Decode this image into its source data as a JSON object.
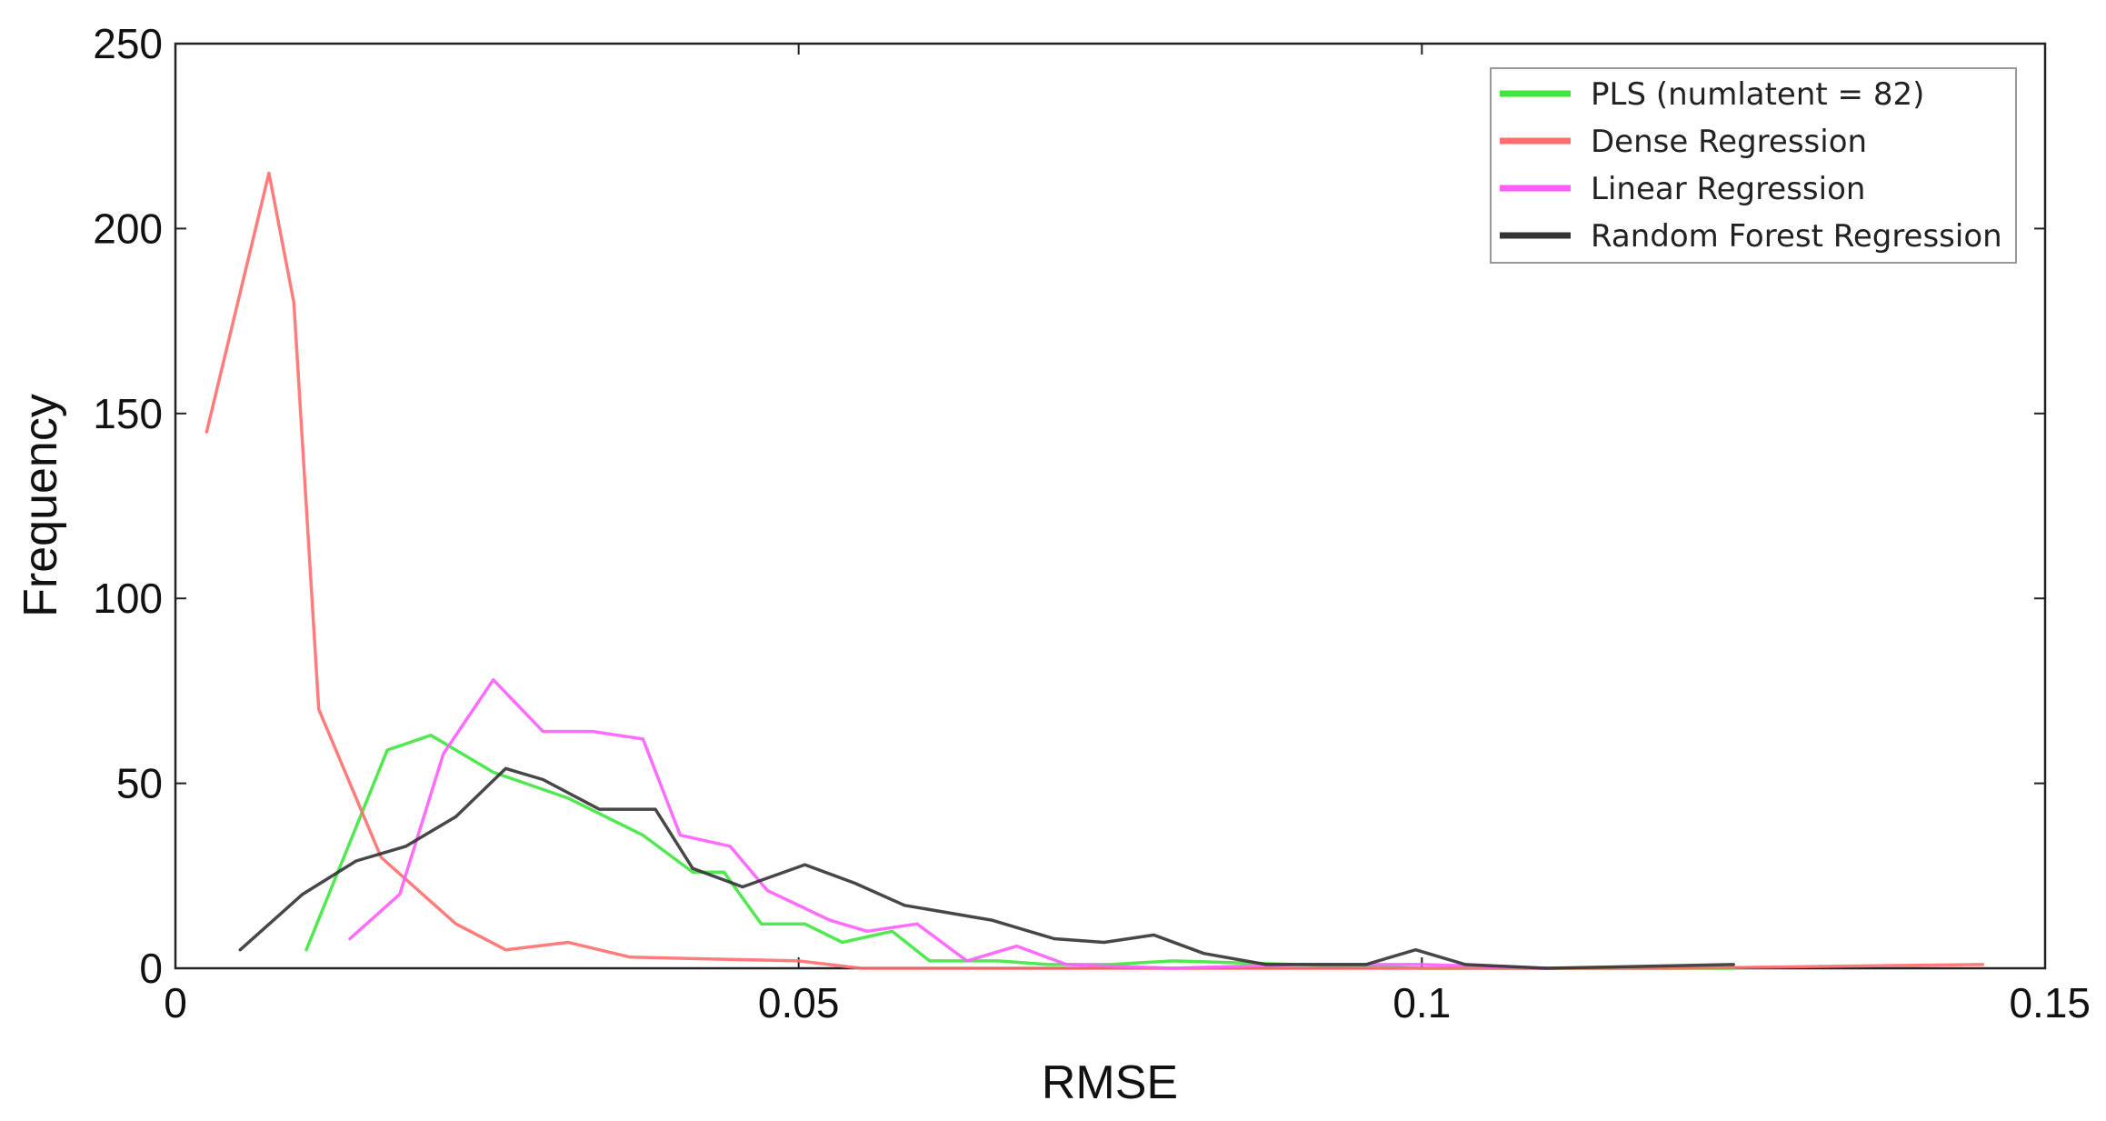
{
  "chart_data": {
    "type": "line",
    "title": "",
    "xlabel": "RMSE",
    "ylabel": "Frequency",
    "xlim": [
      0,
      0.15
    ],
    "ylim": [
      0,
      250
    ],
    "xticks": [
      {
        "value": 0,
        "label": "0"
      },
      {
        "value": 0.05,
        "label": "0.05"
      },
      {
        "value": 0.1,
        "label": "0.1"
      },
      {
        "value": 0.15,
        "label": "0.15"
      }
    ],
    "yticks": [
      {
        "value": 0,
        "label": "0"
      },
      {
        "value": 50,
        "label": "50"
      },
      {
        "value": 100,
        "label": "100"
      },
      {
        "value": 150,
        "label": "150"
      },
      {
        "value": 200,
        "label": "200"
      },
      {
        "value": 250,
        "label": "250"
      }
    ],
    "grid": false,
    "legend_position": "top-right",
    "series": [
      {
        "name": "PLS (numlatent = 82)",
        "color": "#3ee63e",
        "points": [
          [
            0.0105,
            5
          ],
          [
            0.017,
            59
          ],
          [
            0.0205,
            63
          ],
          [
            0.0255,
            53
          ],
          [
            0.0315,
            46
          ],
          [
            0.0375,
            36
          ],
          [
            0.0415,
            26
          ],
          [
            0.044,
            26
          ],
          [
            0.047,
            12
          ],
          [
            0.0505,
            12
          ],
          [
            0.0535,
            7
          ],
          [
            0.0575,
            10
          ],
          [
            0.0605,
            2
          ],
          [
            0.066,
            2
          ],
          [
            0.07,
            1
          ],
          [
            0.075,
            1
          ],
          [
            0.08,
            2
          ],
          [
            0.09,
            1
          ],
          [
            0.1,
            0
          ],
          [
            0.11,
            0
          ],
          [
            0.125,
            0
          ]
        ]
      },
      {
        "name": "Dense Regression",
        "color": "#ff6e6e",
        "points": [
          [
            0.0025,
            145
          ],
          [
            0.0075,
            215
          ],
          [
            0.0095,
            180
          ],
          [
            0.0115,
            70
          ],
          [
            0.0165,
            30
          ],
          [
            0.0225,
            12
          ],
          [
            0.0265,
            5
          ],
          [
            0.0315,
            7
          ],
          [
            0.0365,
            3
          ],
          [
            0.05,
            2
          ],
          [
            0.055,
            0
          ],
          [
            0.07,
            0
          ],
          [
            0.09,
            0
          ],
          [
            0.12,
            0
          ],
          [
            0.145,
            1
          ]
        ]
      },
      {
        "name": "Linear Regression",
        "color": "#ff5cff",
        "points": [
          [
            0.014,
            8
          ],
          [
            0.018,
            20
          ],
          [
            0.0215,
            58
          ],
          [
            0.0255,
            78
          ],
          [
            0.0295,
            64
          ],
          [
            0.0335,
            64
          ],
          [
            0.0375,
            62
          ],
          [
            0.0405,
            36
          ],
          [
            0.0445,
            33
          ],
          [
            0.0475,
            21
          ],
          [
            0.0525,
            13
          ],
          [
            0.0555,
            10
          ],
          [
            0.0595,
            12
          ],
          [
            0.0635,
            2
          ],
          [
            0.0675,
            6
          ],
          [
            0.0715,
            1
          ],
          [
            0.08,
            0
          ],
          [
            0.09,
            1
          ],
          [
            0.1,
            1
          ],
          [
            0.11,
            0
          ]
        ]
      },
      {
        "name": "Random Forest Regression",
        "color": "#333333",
        "points": [
          [
            0.0052,
            5
          ],
          [
            0.0102,
            20
          ],
          [
            0.0145,
            29
          ],
          [
            0.0185,
            33
          ],
          [
            0.0225,
            41
          ],
          [
            0.0265,
            54
          ],
          [
            0.0295,
            51
          ],
          [
            0.034,
            43
          ],
          [
            0.0385,
            43
          ],
          [
            0.0415,
            27
          ],
          [
            0.0455,
            22
          ],
          [
            0.0505,
            28
          ],
          [
            0.0545,
            23
          ],
          [
            0.0585,
            17
          ],
          [
            0.0655,
            13
          ],
          [
            0.0705,
            8
          ],
          [
            0.0745,
            7
          ],
          [
            0.0785,
            9
          ],
          [
            0.0825,
            4
          ],
          [
            0.0875,
            1
          ],
          [
            0.0955,
            1
          ],
          [
            0.0995,
            5
          ],
          [
            0.1035,
            1
          ],
          [
            0.11,
            0
          ],
          [
            0.125,
            1
          ]
        ]
      }
    ]
  }
}
